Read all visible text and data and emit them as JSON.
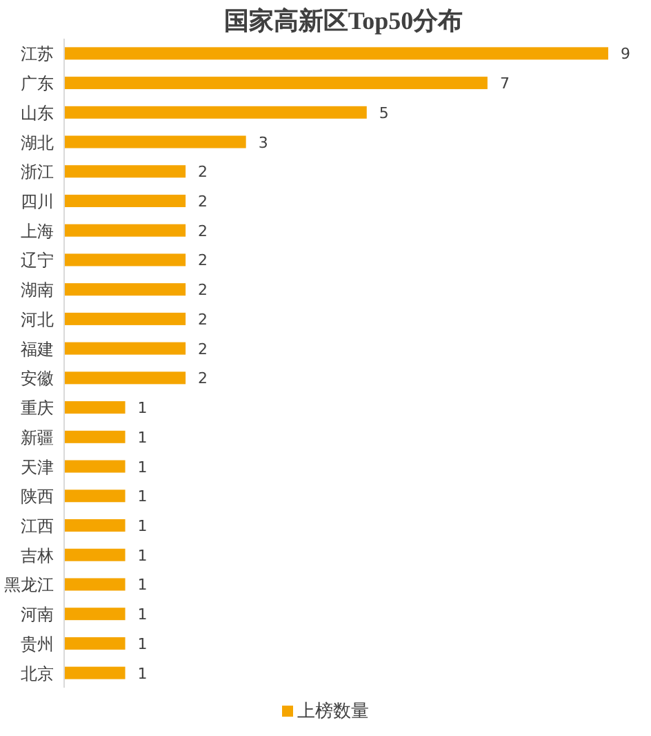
{
  "chart_data": {
    "type": "bar",
    "orientation": "horizontal",
    "title": "国家高新区Top50分布",
    "categories": [
      "江苏",
      "广东",
      "山东",
      "湖北",
      "浙江",
      "四川",
      "上海",
      "辽宁",
      "湖南",
      "河北",
      "福建",
      "安徽",
      "重庆",
      "新疆",
      "天津",
      "陕西",
      "江西",
      "吉林",
      "黑龙江",
      "河南",
      "贵州",
      "北京"
    ],
    "series": [
      {
        "name": "上榜数量",
        "color": "#f5a500",
        "values": [
          9,
          7,
          5,
          3,
          2,
          2,
          2,
          2,
          2,
          2,
          2,
          2,
          1,
          1,
          1,
          1,
          1,
          1,
          1,
          1,
          1,
          1
        ]
      }
    ],
    "data_labels": true,
    "legend": "bottom"
  }
}
